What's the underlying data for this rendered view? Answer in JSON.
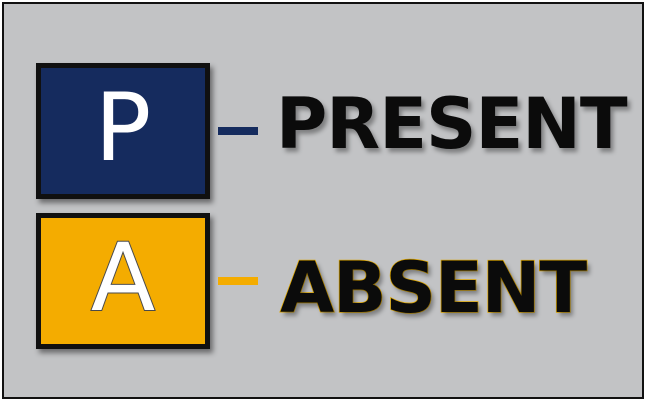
{
  "legend": {
    "present": {
      "letter": "P",
      "label": "PRESENT",
      "box_color": "#152b5e",
      "dash_color": "#152b5e"
    },
    "absent": {
      "letter": "A",
      "label": "ABSENT",
      "box_color": "#f4ac00",
      "dash_color": "#f4ac00"
    }
  }
}
